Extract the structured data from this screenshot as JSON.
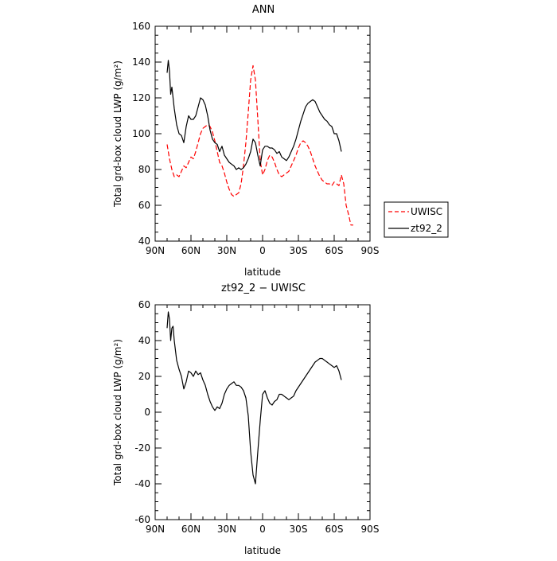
{
  "chart_data": [
    {
      "type": "line",
      "title": "ANN",
      "xlabel": "latitude",
      "ylabel": "Total grd-box cloud LWP (g/m²)",
      "xlim": [
        90,
        -90
      ],
      "ylim": [
        40,
        160
      ],
      "xticks": [
        90,
        60,
        30,
        0,
        -30,
        -60,
        -90
      ],
      "xtick_labels": [
        "90N",
        "60N",
        "30N",
        "0",
        "30S",
        "60S",
        "90S"
      ],
      "yticks": [
        40,
        60,
        80,
        100,
        120,
        140,
        160
      ],
      "legend": "right",
      "series": [
        {
          "name": "UWISC",
          "color": "#ff0000",
          "dash": true,
          "x": [
            80,
            78,
            76,
            74,
            72,
            70,
            68,
            66,
            64,
            62,
            60,
            58,
            56,
            54,
            52,
            50,
            48,
            46,
            44,
            42,
            40,
            38,
            36,
            34,
            32,
            30,
            28,
            26,
            24,
            22,
            20,
            18,
            16,
            14,
            12,
            10,
            8,
            6,
            4,
            2,
            0,
            -2,
            -4,
            -6,
            -8,
            -10,
            -12,
            -14,
            -16,
            -18,
            -20,
            -22,
            -24,
            -26,
            -28,
            -30,
            -32,
            -34,
            -36,
            -38,
            -40,
            -42,
            -44,
            -46,
            -48,
            -50,
            -52,
            -54,
            -56,
            -58,
            -60,
            -62,
            -64,
            -66,
            -68,
            -70,
            -72,
            -74,
            -76
          ],
          "values": [
            94,
            86,
            80,
            76,
            77,
            76,
            79,
            82,
            81,
            84,
            87,
            86,
            90,
            95,
            100,
            103,
            104,
            105,
            104,
            101,
            96,
            90,
            84,
            82,
            78,
            73,
            69,
            66,
            65,
            66,
            67,
            72,
            82,
            95,
            112,
            130,
            138,
            130,
            108,
            85,
            77,
            80,
            85,
            88,
            87,
            84,
            80,
            77,
            76,
            77,
            78,
            79,
            82,
            85,
            88,
            92,
            95,
            96,
            95,
            93,
            90,
            86,
            82,
            79,
            76,
            74,
            73,
            72,
            72,
            71,
            73,
            72,
            71,
            77,
            72,
            60,
            55,
            49,
            49
          ]
        },
        {
          "name": "zt92_2",
          "color": "#000000",
          "dash": false,
          "x": [
            80,
            79,
            78,
            77,
            76,
            75,
            74,
            72,
            70,
            68,
            66,
            64,
            62,
            60,
            58,
            56,
            54,
            52,
            50,
            48,
            46,
            44,
            42,
            40,
            38,
            36,
            34,
            32,
            30,
            28,
            26,
            24,
            22,
            20,
            18,
            16,
            14,
            12,
            10,
            8,
            6,
            4,
            2,
            0,
            -2,
            -4,
            -6,
            -8,
            -10,
            -12,
            -14,
            -16,
            -18,
            -20,
            -22,
            -24,
            -26,
            -28,
            -30,
            -32,
            -34,
            -36,
            -38,
            -40,
            -42,
            -44,
            -46,
            -48,
            -50,
            -52,
            -54,
            -56,
            -58,
            -60,
            -62,
            -64,
            -66
          ],
          "values": [
            134,
            141,
            135,
            122,
            126,
            120,
            114,
            105,
            100,
            99,
            95,
            104,
            110,
            108,
            108,
            110,
            115,
            120,
            119,
            116,
            110,
            102,
            97,
            95,
            94,
            90,
            93,
            88,
            86,
            84,
            83,
            82,
            80,
            81,
            80,
            81,
            83,
            86,
            90,
            97,
            95,
            88,
            82,
            91,
            93,
            93,
            92,
            92,
            91,
            89,
            90,
            87,
            86,
            85,
            87,
            90,
            93,
            97,
            102,
            107,
            111,
            115,
            117,
            118,
            119,
            118,
            115,
            112,
            110,
            108,
            107,
            105,
            104,
            100,
            100,
            96,
            90
          ]
        }
      ]
    },
    {
      "type": "line",
      "title": "zt92_2 − UWISC",
      "xlabel": "latitude",
      "ylabel": "Total grd-box cloud LWP (g/m²)",
      "xlim": [
        90,
        -90
      ],
      "ylim": [
        -60,
        60
      ],
      "xticks": [
        90,
        60,
        30,
        0,
        -30,
        -60,
        -90
      ],
      "xtick_labels": [
        "90N",
        "60N",
        "30N",
        "0",
        "30S",
        "60S",
        "90S"
      ],
      "yticks": [
        -60,
        -40,
        -20,
        0,
        20,
        40,
        60
      ],
      "series": [
        {
          "color": "#000000",
          "dash": false,
          "x": [
            80,
            79,
            78,
            77,
            76,
            75,
            74,
            72,
            70,
            68,
            66,
            64,
            62,
            60,
            58,
            56,
            54,
            52,
            50,
            48,
            46,
            44,
            42,
            40,
            38,
            36,
            34,
            32,
            30,
            28,
            26,
            24,
            22,
            20,
            18,
            16,
            14,
            12,
            10,
            8,
            6,
            4,
            2,
            0,
            -2,
            -4,
            -6,
            -8,
            -10,
            -12,
            -14,
            -16,
            -18,
            -20,
            -22,
            -24,
            -26,
            -28,
            -30,
            -32,
            -34,
            -36,
            -38,
            -40,
            -42,
            -44,
            -46,
            -48,
            -50,
            -52,
            -54,
            -56,
            -58,
            -60,
            -62,
            -64,
            -66
          ],
          "values": [
            47,
            56,
            52,
            40,
            47,
            48,
            40,
            29,
            24,
            20,
            13,
            17,
            23,
            22,
            20,
            23,
            21,
            22,
            18,
            15,
            10,
            6,
            3,
            1,
            3,
            2,
            5,
            10,
            13,
            15,
            16,
            17,
            15,
            15,
            14,
            12,
            8,
            -2,
            -22,
            -35,
            -40,
            -22,
            -5,
            10,
            12,
            8,
            5,
            4,
            6,
            7,
            10,
            10,
            9,
            8,
            7,
            8,
            9,
            12,
            14,
            16,
            18,
            20,
            22,
            24,
            26,
            28,
            29,
            30,
            30,
            29,
            28,
            27,
            26,
            25,
            26,
            23,
            18
          ]
        }
      ]
    }
  ]
}
